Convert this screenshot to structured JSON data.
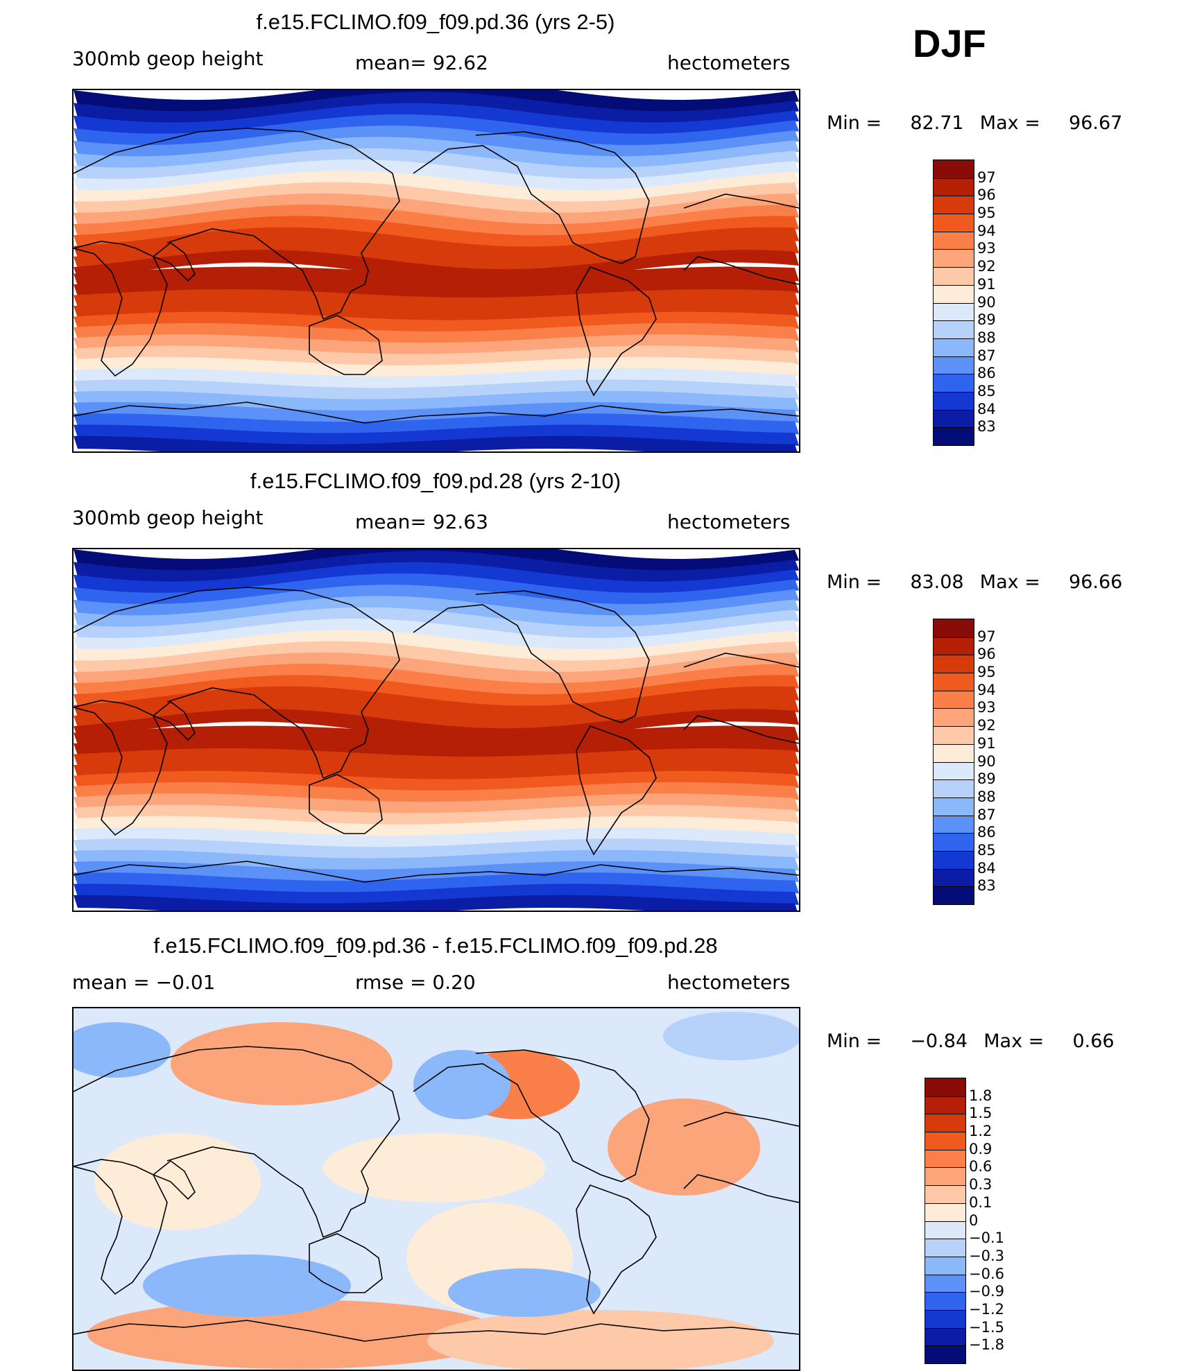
{
  "season": "DJF",
  "panels": [
    {
      "id": "panel-1",
      "title": "f.e15.FCLIMO.f09_f09.pd.36 (yrs 2-5)",
      "left_label": "300mb geop height",
      "center_label": "mean=   92.62",
      "right_label": "hectometers",
      "min_label": "Min =",
      "min_value": "82.71",
      "max_label": "Max =",
      "max_value": "96.67",
      "field": "full",
      "colorbar": {
        "labels": [
          "97",
          "96",
          "95",
          "94",
          "93",
          "92",
          "91",
          "90",
          "89",
          "88",
          "87",
          "86",
          "85",
          "84",
          "83"
        ],
        "colors": [
          "#8a0c08",
          "#b51f06",
          "#d73a0b",
          "#f05a1f",
          "#fb7f48",
          "#fca47a",
          "#fdc9a8",
          "#fdecd8",
          "#dbe9fb",
          "#b6d2fb",
          "#8bb8fb",
          "#5c92f8",
          "#2f64ee",
          "#1339d2",
          "#0a1da4",
          "#040c78"
        ]
      }
    },
    {
      "id": "panel-2",
      "title": "f.e15.FCLIMO.f09_f09.pd.28 (yrs 2-10)",
      "left_label": "300mb geop height",
      "center_label": "mean=   92.63",
      "right_label": "hectometers",
      "min_label": "Min =",
      "min_value": "83.08",
      "max_label": "Max =",
      "max_value": "96.66",
      "field": "full",
      "colorbar": {
        "labels": [
          "97",
          "96",
          "95",
          "94",
          "93",
          "92",
          "91",
          "90",
          "89",
          "88",
          "87",
          "86",
          "85",
          "84",
          "83"
        ],
        "colors": [
          "#8a0c08",
          "#b51f06",
          "#d73a0b",
          "#f05a1f",
          "#fb7f48",
          "#fca47a",
          "#fdc9a8",
          "#fdecd8",
          "#dbe9fb",
          "#b6d2fb",
          "#8bb8fb",
          "#5c92f8",
          "#2f64ee",
          "#1339d2",
          "#0a1da4",
          "#040c78"
        ]
      }
    },
    {
      "id": "panel-3",
      "title": "f.e15.FCLIMO.f09_f09.pd.36 - f.e15.FCLIMO.f09_f09.pd.28",
      "left_label": "mean =   −0.01",
      "center_label": "rmse =    0.20",
      "right_label": "hectometers",
      "min_label": "Min =",
      "min_value": "−0.84",
      "max_label": "Max =",
      "max_value": "0.66",
      "field": "diff",
      "colorbar": {
        "labels": [
          "1.8",
          "1.5",
          "1.2",
          "0.9",
          "0.6",
          "0.3",
          "0.1",
          "0",
          "−0.1",
          "−0.3",
          "−0.6",
          "−0.9",
          "−1.2",
          "−1.5",
          "−1.8"
        ],
        "colors": [
          "#8a0c08",
          "#b51f06",
          "#d73a0b",
          "#f05a1f",
          "#fb7f48",
          "#fca47a",
          "#fdc9a8",
          "#fdecd8",
          "#dbe9fb",
          "#b6d2fb",
          "#8bb8fb",
          "#5c92f8",
          "#2f64ee",
          "#1339d2",
          "#0a1da4",
          "#040c78"
        ]
      }
    }
  ]
}
